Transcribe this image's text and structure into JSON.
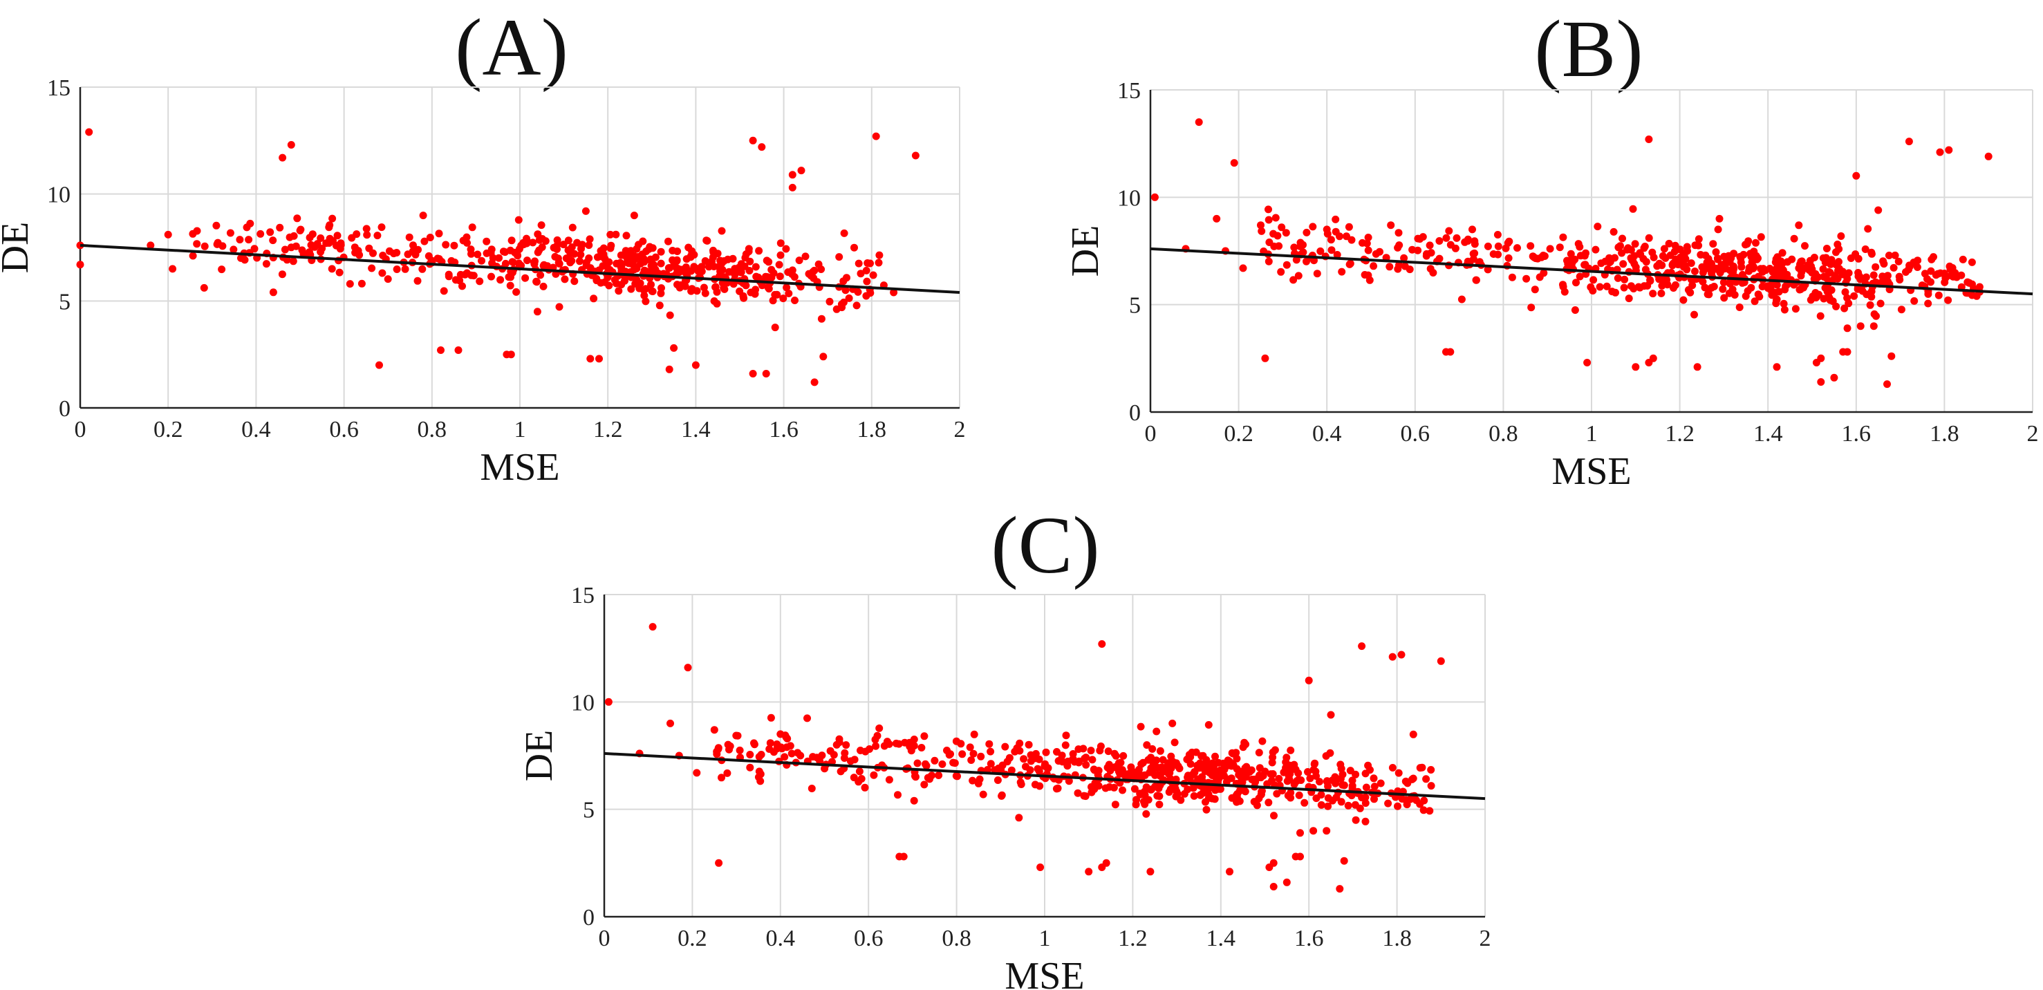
{
  "colors": {
    "point": "#ff0000",
    "fit_line": "#111111",
    "grid": "#d9d9d9"
  },
  "chart_data": [
    {
      "type": "scatter",
      "title": "(A)",
      "xlabel": "MSE",
      "ylabel": "DE",
      "xlim": [
        0,
        2
      ],
      "ylim": [
        0,
        15
      ],
      "x_ticks": [
        "0",
        "0.2",
        "0.4",
        "0.6",
        "0.8",
        "1",
        "1.2",
        "1.4",
        "1.6",
        "1.8",
        "2"
      ],
      "y_ticks": [
        "0",
        "5",
        "10",
        "15"
      ],
      "grid": true,
      "fit_line": {
        "x": [
          0,
          2
        ],
        "y": [
          7.6,
          5.4
        ]
      },
      "outliers": [
        [
          0.0,
          7.6
        ],
        [
          0.0,
          6.7
        ],
        [
          0.02,
          12.9
        ],
        [
          0.16,
          7.6
        ],
        [
          0.2,
          8.1
        ],
        [
          0.21,
          6.5
        ],
        [
          0.46,
          11.7
        ],
        [
          0.48,
          12.3
        ],
        [
          0.68,
          2.0
        ],
        [
          0.78,
          9.0
        ],
        [
          0.82,
          2.7
        ],
        [
          0.86,
          2.7
        ],
        [
          0.97,
          2.5
        ],
        [
          0.98,
          2.5
        ],
        [
          1.04,
          4.5
        ],
        [
          1.15,
          9.2
        ],
        [
          1.16,
          2.3
        ],
        [
          1.18,
          2.3
        ],
        [
          1.26,
          9.0
        ],
        [
          1.34,
          1.8
        ],
        [
          1.35,
          2.8
        ],
        [
          1.4,
          2.0
        ],
        [
          1.53,
          12.5
        ],
        [
          1.55,
          12.2
        ],
        [
          1.53,
          1.6
        ],
        [
          1.56,
          1.6
        ],
        [
          1.62,
          10.3
        ],
        [
          1.62,
          10.9
        ],
        [
          1.64,
          11.1
        ],
        [
          1.67,
          1.2
        ],
        [
          1.69,
          2.4
        ],
        [
          1.81,
          12.7
        ],
        [
          1.9,
          11.8
        ],
        [
          1.85,
          5.4
        ]
      ],
      "cluster": {
        "count": 560,
        "x_range": [
          0.25,
          1.83
        ],
        "density_peak_x": 1.25,
        "y_spread": 0.7
      }
    },
    {
      "type": "scatter",
      "title": "(B)",
      "xlabel": "MSE",
      "ylabel": "DE",
      "xlim": [
        0,
        2
      ],
      "ylim": [
        0,
        15
      ],
      "x_ticks": [
        "0",
        "0.2",
        "0.4",
        "0.6",
        "0.8",
        "1",
        "1.2",
        "1.4",
        "1.6",
        "1.8",
        "2"
      ],
      "y_ticks": [
        "0",
        "5",
        "10",
        "15"
      ],
      "grid": true,
      "fit_line": {
        "x": [
          0,
          2
        ],
        "y": [
          7.6,
          5.5
        ]
      },
      "outliers": [
        [
          0.01,
          10.0
        ],
        [
          0.08,
          7.6
        ],
        [
          0.11,
          13.5
        ],
        [
          0.15,
          9.0
        ],
        [
          0.19,
          11.6
        ],
        [
          0.17,
          7.5
        ],
        [
          0.21,
          6.7
        ],
        [
          0.25,
          8.7
        ],
        [
          0.26,
          2.5
        ],
        [
          0.4,
          8.5
        ],
        [
          0.67,
          2.8
        ],
        [
          0.68,
          2.8
        ],
        [
          0.99,
          2.3
        ],
        [
          1.1,
          2.1
        ],
        [
          1.13,
          12.7
        ],
        [
          1.13,
          2.3
        ],
        [
          1.14,
          2.5
        ],
        [
          1.24,
          2.1
        ],
        [
          1.29,
          9.0
        ],
        [
          1.42,
          2.1
        ],
        [
          1.51,
          2.3
        ],
        [
          1.52,
          2.5
        ],
        [
          1.52,
          1.4
        ],
        [
          1.55,
          1.6
        ],
        [
          1.57,
          2.8
        ],
        [
          1.58,
          2.8
        ],
        [
          1.58,
          3.9
        ],
        [
          1.6,
          11.0
        ],
        [
          1.61,
          4.0
        ],
        [
          1.64,
          4.0
        ],
        [
          1.65,
          9.4
        ],
        [
          1.67,
          1.3
        ],
        [
          1.68,
          2.6
        ],
        [
          1.72,
          12.6
        ],
        [
          1.79,
          12.1
        ],
        [
          1.81,
          12.2
        ],
        [
          1.9,
          11.9
        ],
        [
          1.82,
          6.3
        ]
      ],
      "cluster": {
        "count": 620,
        "x_range": [
          0.25,
          1.88
        ],
        "density_peak_x": 1.35,
        "y_spread": 0.7
      }
    },
    {
      "type": "scatter",
      "title": "(C)",
      "xlabel": "MSE",
      "ylabel": "DE",
      "xlim": [
        0,
        2
      ],
      "ylim": [
        0,
        15
      ],
      "x_ticks": [
        "0",
        "0.2",
        "0.4",
        "0.6",
        "0.8",
        "1",
        "1.2",
        "1.4",
        "1.6",
        "1.8",
        "2"
      ],
      "y_ticks": [
        "0",
        "5",
        "10",
        "15"
      ],
      "grid": true,
      "fit_line": {
        "x": [
          0,
          2
        ],
        "y": [
          7.6,
          5.5
        ]
      },
      "outliers": [
        [
          0.01,
          10.0
        ],
        [
          0.08,
          7.6
        ],
        [
          0.11,
          13.5
        ],
        [
          0.15,
          9.0
        ],
        [
          0.19,
          11.6
        ],
        [
          0.17,
          7.5
        ],
        [
          0.21,
          6.7
        ],
        [
          0.25,
          8.7
        ],
        [
          0.26,
          2.5
        ],
        [
          0.4,
          8.5
        ],
        [
          0.67,
          2.8
        ],
        [
          0.68,
          2.8
        ],
        [
          0.99,
          2.3
        ],
        [
          1.1,
          2.1
        ],
        [
          1.13,
          12.7
        ],
        [
          1.13,
          2.3
        ],
        [
          1.14,
          2.5
        ],
        [
          1.24,
          2.1
        ],
        [
          1.29,
          9.0
        ],
        [
          1.42,
          2.1
        ],
        [
          1.51,
          2.3
        ],
        [
          1.52,
          2.5
        ],
        [
          1.52,
          1.4
        ],
        [
          1.55,
          1.6
        ],
        [
          1.57,
          2.8
        ],
        [
          1.58,
          2.8
        ],
        [
          1.58,
          3.9
        ],
        [
          1.6,
          11.0
        ],
        [
          1.61,
          4.0
        ],
        [
          1.64,
          4.0
        ],
        [
          1.65,
          9.4
        ],
        [
          1.67,
          1.3
        ],
        [
          1.68,
          2.6
        ],
        [
          1.72,
          12.6
        ],
        [
          1.79,
          12.1
        ],
        [
          1.81,
          12.2
        ],
        [
          1.9,
          11.9
        ],
        [
          1.82,
          6.3
        ]
      ],
      "cluster": {
        "count": 620,
        "x_range": [
          0.25,
          1.88
        ],
        "density_peak_x": 1.35,
        "y_spread": 0.7
      }
    }
  ]
}
